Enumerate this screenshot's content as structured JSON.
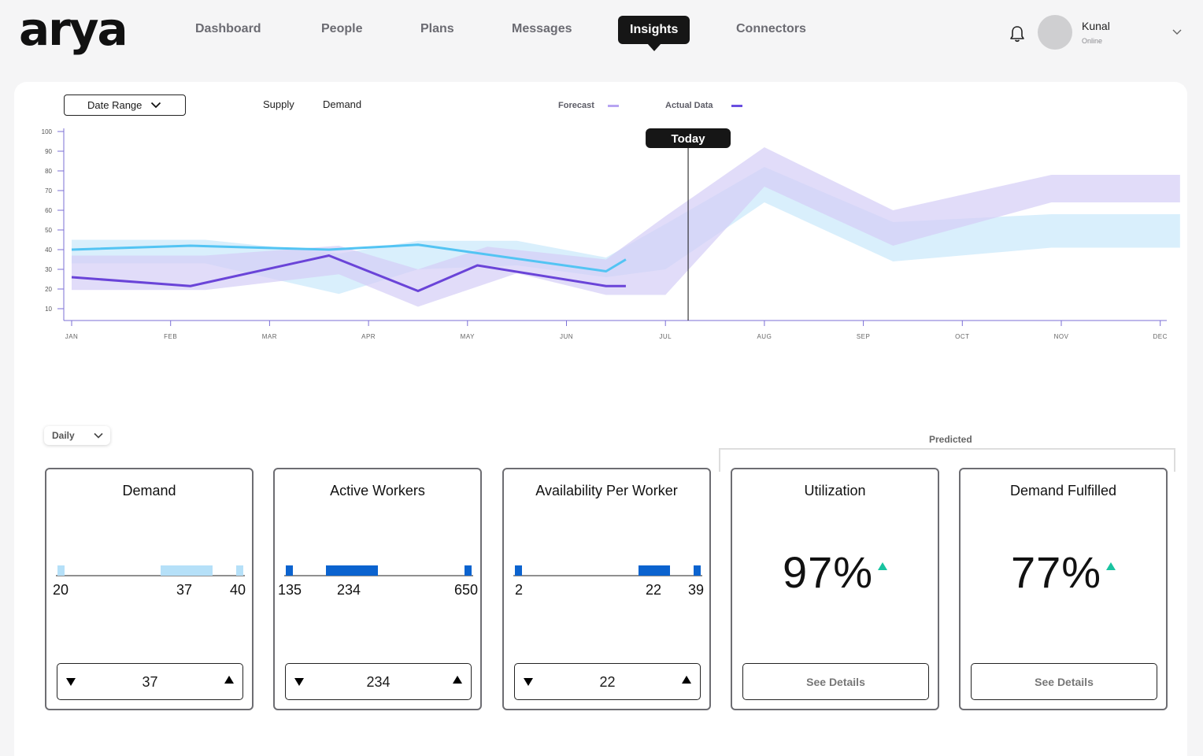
{
  "header": {
    "logo": "arya",
    "nav": [
      {
        "label": "Dashboard"
      },
      {
        "label": "People"
      },
      {
        "label": "Plans"
      },
      {
        "label": "Messages"
      },
      {
        "label": "Insights",
        "active": true
      },
      {
        "label": "Connectors"
      }
    ],
    "user": {
      "name": "Kunal",
      "status": "Online"
    }
  },
  "controls": {
    "date_range": "Date Range",
    "tabs": [
      "Supply",
      "Demand"
    ],
    "legend": [
      {
        "label": "Forecast",
        "color": "#b7a4f2"
      },
      {
        "label": "Actual Data",
        "color": "#6a4ee0"
      }
    ],
    "today_label": "Today",
    "granularity": "Daily",
    "predicted_label": "Predicted"
  },
  "chart_data": {
    "type": "line",
    "ylim": [
      0,
      100
    ],
    "yticks": [
      10,
      20,
      30,
      40,
      50,
      60,
      70,
      80,
      90,
      100
    ],
    "months": [
      "JAN",
      "FEB",
      "MAR",
      "APR",
      "MAY",
      "JUN",
      "JUL",
      "AUG",
      "SEP",
      "OCT",
      "NOV",
      "DEC"
    ],
    "today_x": 6.5,
    "series": [
      {
        "color": "#53c4f3",
        "points": [
          [
            0,
            40
          ],
          [
            1.2,
            42
          ],
          [
            2.6,
            40
          ],
          [
            3.5,
            42.5
          ],
          [
            5.4,
            29
          ],
          [
            5.6,
            35
          ]
        ]
      },
      {
        "color": "#6a44d8",
        "points": [
          [
            0,
            26
          ],
          [
            1.2,
            21.5
          ],
          [
            2.6,
            37
          ],
          [
            3.5,
            19
          ],
          [
            4.1,
            32
          ],
          [
            5.4,
            21.5
          ],
          [
            5.6,
            21.5
          ]
        ]
      }
    ],
    "bands": [
      {
        "color": "#c9e8fb",
        "upper": [
          [
            0,
            45
          ],
          [
            1.35,
            45
          ],
          [
            2.7,
            38
          ],
          [
            3.5,
            44.5
          ],
          [
            4.5,
            44.5
          ],
          [
            5.4,
            36
          ],
          [
            6.0,
            53
          ],
          [
            7.0,
            82
          ],
          [
            8.3,
            54
          ],
          [
            9.9,
            58
          ],
          [
            11.2,
            58
          ]
        ],
        "lower": [
          [
            11.2,
            41
          ],
          [
            9.9,
            41
          ],
          [
            8.3,
            34
          ],
          [
            7.0,
            64
          ],
          [
            6.0,
            30
          ],
          [
            5.4,
            26
          ],
          [
            4.5,
            32
          ],
          [
            3.5,
            30
          ],
          [
            2.7,
            17.5
          ],
          [
            1.35,
            33
          ],
          [
            0,
            33
          ]
        ]
      },
      {
        "color": "#d4cdf7",
        "upper": [
          [
            0,
            37
          ],
          [
            1.35,
            37
          ],
          [
            2.7,
            42
          ],
          [
            3.5,
            30
          ],
          [
            4.2,
            41.5
          ],
          [
            5.4,
            35
          ],
          [
            6.0,
            57
          ],
          [
            7.0,
            92
          ],
          [
            8.3,
            60
          ],
          [
            9.9,
            78
          ],
          [
            11.2,
            78
          ]
        ],
        "lower": [
          [
            11.2,
            64
          ],
          [
            9.9,
            64
          ],
          [
            8.3,
            42
          ],
          [
            7.0,
            72
          ],
          [
            6.0,
            17
          ],
          [
            5.4,
            17
          ],
          [
            4.5,
            28
          ],
          [
            3.5,
            11
          ],
          [
            2.7,
            27.5
          ],
          [
            1.35,
            19.5
          ],
          [
            0,
            19.5
          ]
        ]
      }
    ]
  },
  "cards": [
    {
      "title": "Demand",
      "kind": "range",
      "min": "20",
      "mid": "37",
      "max": "40",
      "value": "37",
      "color": "#b5e0f8"
    },
    {
      "title": "Active Workers",
      "kind": "range",
      "min": "135",
      "mid": "234",
      "max": "650",
      "value": "234",
      "color": "#0b63cf"
    },
    {
      "title": "Availability Per Worker",
      "kind": "range",
      "min": "2",
      "mid": "22",
      "max": "39",
      "value": "22",
      "color": "#0b63cf"
    },
    {
      "title": "Utilization",
      "kind": "pct",
      "value": "97%",
      "cta": "See Details"
    },
    {
      "title": "Demand Fulfilled",
      "kind": "pct",
      "value": "77%",
      "cta": "See Details"
    }
  ]
}
